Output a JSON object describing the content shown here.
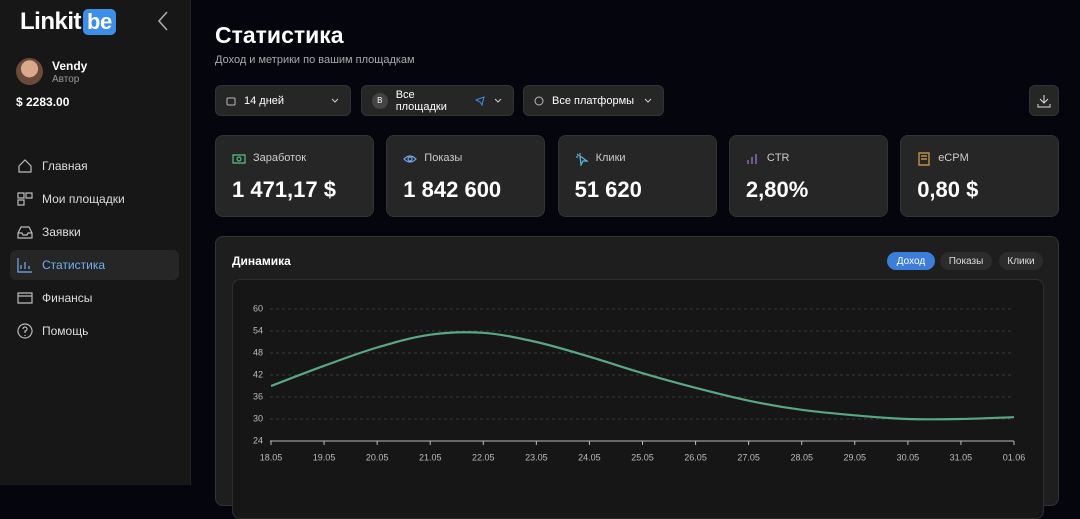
{
  "sidebar": {
    "logo": "Linkit",
    "logo_badge": "be",
    "user": {
      "name": "Vendy",
      "role": "Автор",
      "balance": "$ 2283.00"
    },
    "nav": [
      "Главная",
      "Мои площадки",
      "Заявки",
      "Статистика",
      "Финансы",
      "Помощь"
    ],
    "active_nav": 3
  },
  "header": {
    "title": "Статистика",
    "subtitle": "Доход и метрики по вашим площадкам"
  },
  "filters": {
    "period": "14 дней",
    "sites_badge": "В",
    "sites": "Все площадки",
    "platforms": "Все платформы"
  },
  "stats": [
    {
      "label": "Заработок",
      "value": "1 471,17 $"
    },
    {
      "label": "Показы",
      "value": "1 842 600"
    },
    {
      "label": "Клики",
      "value": "51 620"
    },
    {
      "label": "CTR",
      "value": "2,80%"
    },
    {
      "label": "eCPM",
      "value": "0,80 $"
    }
  ],
  "chart_data": {
    "type": "line",
    "title": "Динамика",
    "tabs": [
      "Доход",
      "Показы",
      "Клики"
    ],
    "active_tab": 0,
    "categories": [
      "18.05",
      "19.05",
      "20.05",
      "21.05",
      "22.05",
      "23.05",
      "24.05",
      "25.05",
      "26.05",
      "27.05",
      "28.05",
      "29.05",
      "30.05",
      "31.05",
      "01.06"
    ],
    "values": [
      39,
      44.5,
      49.5,
      53,
      53.5,
      51,
      47,
      42.5,
      38.5,
      35,
      32.5,
      31,
      30,
      30,
      30.5
    ],
    "color": "#58a883",
    "ylim": [
      24,
      60
    ],
    "yticks": [
      24,
      30,
      36,
      42,
      48,
      54,
      60
    ],
    "grid": true
  }
}
